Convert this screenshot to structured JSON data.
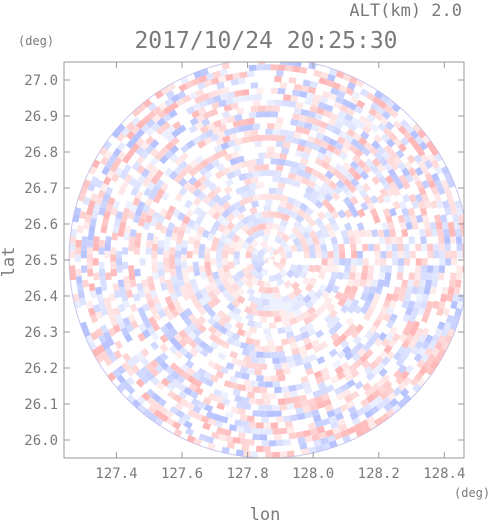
{
  "chart_data": {
    "type": "heatmap",
    "title": "2017/10/24 20:25:30",
    "altitude_label": "ALT(km) 2.0",
    "xlabel": "lon",
    "ylabel": "lat",
    "x_unit": "(deg)",
    "y_unit": "(deg)",
    "xlim": [
      127.24,
      128.46
    ],
    "ylim": [
      25.95,
      27.05
    ],
    "x_ticks": [
      127.4,
      127.6,
      127.8,
      128.0,
      128.2,
      128.4
    ],
    "y_ticks": [
      26.0,
      26.1,
      26.2,
      26.3,
      26.4,
      26.5,
      26.6,
      26.7,
      26.8,
      26.9,
      27.0
    ],
    "x_tick_labels": [
      "127.4",
      "127.6",
      "127.8",
      "128.0",
      "128.2",
      "128.4"
    ],
    "y_tick_labels": [
      "26.0",
      "26.1",
      "26.2",
      "26.3",
      "26.4",
      "26.5",
      "26.6",
      "26.7",
      "26.8",
      "26.9",
      "27.0"
    ],
    "radar_center": {
      "lon": 127.865,
      "lat": 26.505
    },
    "radar_range_deg_lat": 0.555,
    "colors": {
      "positive": "#ffaaaa",
      "negative": "#aab8ff",
      "neutral": "#ffffff",
      "axis": "#9a9a9a"
    }
  }
}
